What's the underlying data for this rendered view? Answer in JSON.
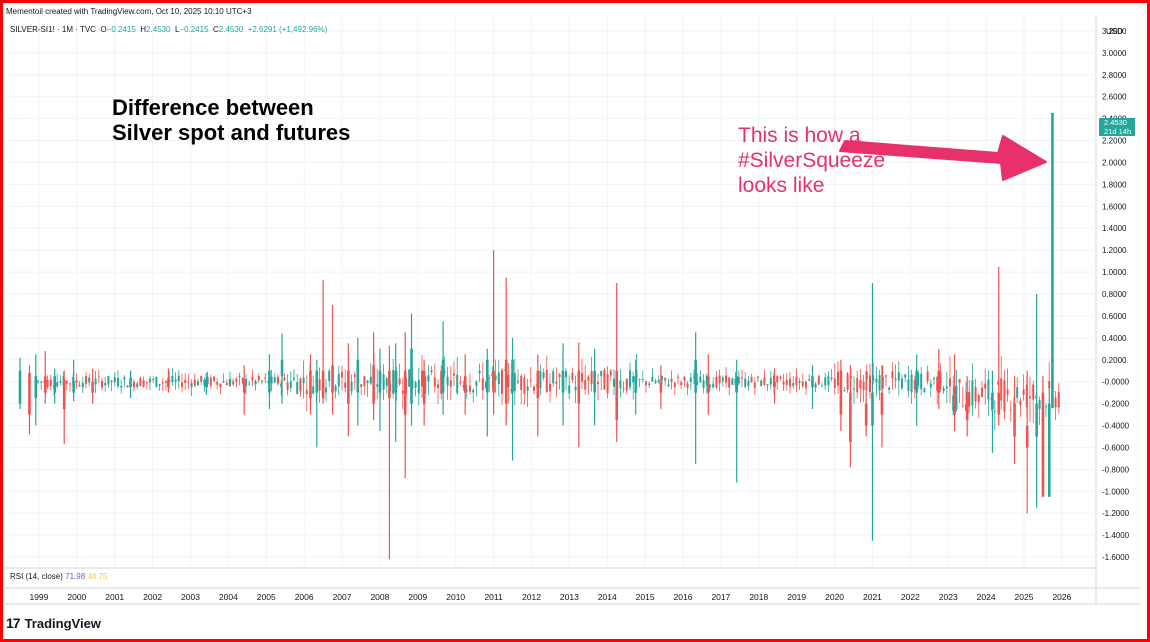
{
  "caption": "Mementoil created with TradingView.com, Oct 10, 2025 10:10 UTC+3",
  "legend": {
    "symbol": "SILVER-SI1! · 1M · TVC",
    "o_label": "O",
    "o_value": "−0.2415",
    "h_label": "H",
    "h_value": "2.4530",
    "l_label": "L",
    "l_value": "−0.2415",
    "c_label": "C",
    "c_value": "2.4530",
    "change": "+2.6291 (+1,492.96%)"
  },
  "rsi": {
    "label": "RSI (14, close)",
    "value1": "71.98",
    "value2": "48.75"
  },
  "axis": {
    "currency": "USD"
  },
  "price_tag": {
    "price": "2.4530",
    "countdown": "21d 14h"
  },
  "headline": {
    "line1": "Difference between",
    "line2": "Silver spot and futures"
  },
  "annotation": {
    "line1": "This is how a",
    "line2": "#SilverSqueeze",
    "line3": "looks like"
  },
  "brand": {
    "logo_mark": "17",
    "name": "TradingView"
  },
  "colors": {
    "up": "#26a69a",
    "down": "#ef5350",
    "annotation": "#e8306a",
    "frame": "#ff0000"
  },
  "chart_data": {
    "type": "candlestick",
    "title": "Difference between Silver spot and futures",
    "symbol": "SILVER-SI1!",
    "timeframe": "1M",
    "grid": true,
    "y_axis_side": "right",
    "ylim": [
      -1.7,
      3.3
    ],
    "y_ticks": [
      "3.2000",
      "3.0000",
      "2.8000",
      "2.6000",
      "2.4000",
      "2.2000",
      "2.0000",
      "1.8000",
      "1.6000",
      "1.4000",
      "1.2000",
      "1.0000",
      "0.8000",
      "0.6000",
      "0.4000",
      "0.2000",
      "-0.0000",
      "-0.2000",
      "-0.4000",
      "-0.6000",
      "-0.8000",
      "-1.0000",
      "-1.2000",
      "-1.4000",
      "-1.6000"
    ],
    "x_ticks": [
      "1999",
      "2000",
      "2001",
      "2002",
      "2003",
      "2004",
      "2005",
      "2006",
      "2007",
      "2008",
      "2009",
      "2010",
      "2011",
      "2012",
      "2013",
      "2014",
      "2015",
      "2016",
      "2017",
      "2018",
      "2019",
      "2020",
      "2021",
      "2022",
      "2023",
      "2024",
      "2025",
      "2026"
    ],
    "candles": [
      {
        "date": "1998-07",
        "open": -0.2,
        "high": 0.22,
        "low": -0.25,
        "close": 0.1
      },
      {
        "date": "1998-10",
        "open": 0.08,
        "high": 0.15,
        "low": -0.48,
        "close": -0.3
      },
      {
        "date": "1998-12",
        "open": -0.15,
        "high": 0.25,
        "low": -0.4,
        "close": 0.05
      },
      {
        "date": "1999-03",
        "open": 0.05,
        "high": 0.28,
        "low": -0.2,
        "close": -0.1
      },
      {
        "date": "1999-06",
        "open": -0.1,
        "high": 0.12,
        "low": -0.2,
        "close": 0.05
      },
      {
        "date": "1999-09",
        "open": 0.02,
        "high": 0.1,
        "low": -0.57,
        "close": -0.25
      },
      {
        "date": "1999-12",
        "open": -0.1,
        "high": 0.2,
        "low": -0.18,
        "close": 0.0
      },
      {
        "date": "2000-06",
        "open": 0.0,
        "high": 0.12,
        "low": -0.2,
        "close": -0.1
      },
      {
        "date": "2001-06",
        "open": -0.05,
        "high": 0.1,
        "low": -0.15,
        "close": 0.03
      },
      {
        "date": "2002-06",
        "open": 0.03,
        "high": 0.12,
        "low": -0.1,
        "close": -0.05
      },
      {
        "date": "2003-06",
        "open": -0.05,
        "high": 0.08,
        "low": -0.12,
        "close": 0.02
      },
      {
        "date": "2004-06",
        "open": 0.0,
        "high": 0.15,
        "low": -0.3,
        "close": -0.1
      },
      {
        "date": "2005-02",
        "open": -0.1,
        "high": 0.25,
        "low": -0.25,
        "close": 0.1
      },
      {
        "date": "2005-06",
        "open": 0.05,
        "high": 0.44,
        "low": -0.2,
        "close": 0.2
      },
      {
        "date": "2006-03",
        "open": 0.1,
        "high": 0.25,
        "low": -0.3,
        "close": -0.15
      },
      {
        "date": "2006-05",
        "open": -0.1,
        "high": 0.2,
        "low": -0.6,
        "close": 0.1
      },
      {
        "date": "2006-07",
        "open": 0.1,
        "high": 0.93,
        "low": -0.2,
        "close": -0.15
      },
      {
        "date": "2006-10",
        "open": 0.15,
        "high": 0.7,
        "low": -0.3,
        "close": -0.1
      },
      {
        "date": "2007-03",
        "open": 0.1,
        "high": 0.35,
        "low": -0.5,
        "close": -0.2
      },
      {
        "date": "2007-06",
        "open": -0.1,
        "high": 0.4,
        "low": -0.4,
        "close": 0.2
      },
      {
        "date": "2007-11",
        "open": 0.15,
        "high": 0.45,
        "low": -0.35,
        "close": -0.2
      },
      {
        "date": "2008-01",
        "open": -0.1,
        "high": 0.3,
        "low": -0.45,
        "close": 0.1
      },
      {
        "date": "2008-04",
        "open": 0.1,
        "high": 0.33,
        "low": -1.62,
        "close": -0.15
      },
      {
        "date": "2008-06",
        "open": -0.1,
        "high": 0.35,
        "low": -0.55,
        "close": 0.1
      },
      {
        "date": "2008-09",
        "open": 0.1,
        "high": 0.45,
        "low": -0.88,
        "close": -0.3
      },
      {
        "date": "2008-11",
        "open": -0.2,
        "high": 0.62,
        "low": -0.4,
        "close": 0.3
      },
      {
        "date": "2009-03",
        "open": 0.1,
        "high": 0.2,
        "low": -0.4,
        "close": -0.2
      },
      {
        "date": "2009-09",
        "open": -0.1,
        "high": 0.55,
        "low": -0.3,
        "close": 0.2
      },
      {
        "date": "2010-04",
        "open": 0.05,
        "high": 0.25,
        "low": -0.3,
        "close": -0.1
      },
      {
        "date": "2010-11",
        "open": -0.1,
        "high": 0.3,
        "low": -0.5,
        "close": 0.2
      },
      {
        "date": "2011-01",
        "open": 0.1,
        "high": 1.2,
        "low": -0.3,
        "close": -0.1
      },
      {
        "date": "2011-05",
        "open": 0.2,
        "high": 0.95,
        "low": -0.4,
        "close": -0.2
      },
      {
        "date": "2011-07",
        "open": -0.1,
        "high": 0.4,
        "low": -0.72,
        "close": 0.2
      },
      {
        "date": "2012-03",
        "open": 0.1,
        "high": 0.25,
        "low": -0.5,
        "close": -0.15
      },
      {
        "date": "2012-11",
        "open": -0.1,
        "high": 0.35,
        "low": -0.4,
        "close": 0.1
      },
      {
        "date": "2013-04",
        "open": 0.1,
        "high": 0.36,
        "low": -0.6,
        "close": -0.2
      },
      {
        "date": "2013-09",
        "open": -0.1,
        "high": 0.3,
        "low": -0.4,
        "close": 0.1
      },
      {
        "date": "2014-04",
        "open": 0.1,
        "high": 0.9,
        "low": -0.55,
        "close": -0.35
      },
      {
        "date": "2014-10",
        "open": -0.1,
        "high": 0.2,
        "low": -0.3,
        "close": 0.05
      },
      {
        "date": "2015-06",
        "open": 0.0,
        "high": 0.15,
        "low": -0.25,
        "close": -0.1
      },
      {
        "date": "2016-05",
        "open": -0.1,
        "high": 0.45,
        "low": -0.75,
        "close": 0.2
      },
      {
        "date": "2016-09",
        "open": 0.05,
        "high": 0.25,
        "low": -0.3,
        "close": -0.1
      },
      {
        "date": "2017-06",
        "open": -0.1,
        "high": 0.2,
        "low": -0.92,
        "close": 0.05
      },
      {
        "date": "2018-06",
        "open": 0.0,
        "high": 0.12,
        "low": -0.2,
        "close": -0.05
      },
      {
        "date": "2019-06",
        "open": -0.05,
        "high": 0.15,
        "low": -0.25,
        "close": 0.05
      },
      {
        "date": "2020-03",
        "open": 0.1,
        "high": 0.2,
        "low": -0.45,
        "close": -0.3
      },
      {
        "date": "2020-06",
        "open": -0.1,
        "high": 0.15,
        "low": -0.78,
        "close": -0.55
      },
      {
        "date": "2020-11",
        "open": -0.2,
        "high": 0.1,
        "low": -0.5,
        "close": -0.4
      },
      {
        "date": "2021-01",
        "open": -0.4,
        "high": 0.9,
        "low": -1.45,
        "close": -0.1
      },
      {
        "date": "2021-04",
        "open": -0.1,
        "high": 0.15,
        "low": -0.6,
        "close": -0.3
      },
      {
        "date": "2022-03",
        "open": -0.1,
        "high": 0.25,
        "low": -0.4,
        "close": 0.1
      },
      {
        "date": "2022-10",
        "open": 0.1,
        "high": 0.3,
        "low": -0.25,
        "close": -0.1
      },
      {
        "date": "2023-03",
        "open": -0.05,
        "high": 0.25,
        "low": -0.45,
        "close": -0.3
      },
      {
        "date": "2023-07",
        "open": -0.1,
        "high": 0.05,
        "low": -0.5,
        "close": -0.35
      },
      {
        "date": "2024-03",
        "open": -0.25,
        "high": 0.1,
        "low": -0.65,
        "close": -0.1
      },
      {
        "date": "2024-05",
        "open": -0.1,
        "high": 1.05,
        "low": -0.4,
        "close": -0.3
      },
      {
        "date": "2024-10",
        "open": -0.2,
        "high": 0.05,
        "low": -0.75,
        "close": -0.5
      },
      {
        "date": "2025-02",
        "open": -0.4,
        "high": 0.1,
        "low": -1.2,
        "close": -0.6
      },
      {
        "date": "2025-05",
        "open": -0.5,
        "high": 0.8,
        "low": -1.15,
        "close": -0.2
      },
      {
        "date": "2025-07",
        "open": -0.1,
        "high": 0.05,
        "low": -1.05,
        "close": -1.05
      },
      {
        "date": "2025-09",
        "open": -1.05,
        "high": -0.05,
        "low": -1.05,
        "close": -0.2
      },
      {
        "date": "2025-10",
        "open": -0.2415,
        "high": 2.453,
        "low": -0.2415,
        "close": 2.453
      }
    ]
  }
}
